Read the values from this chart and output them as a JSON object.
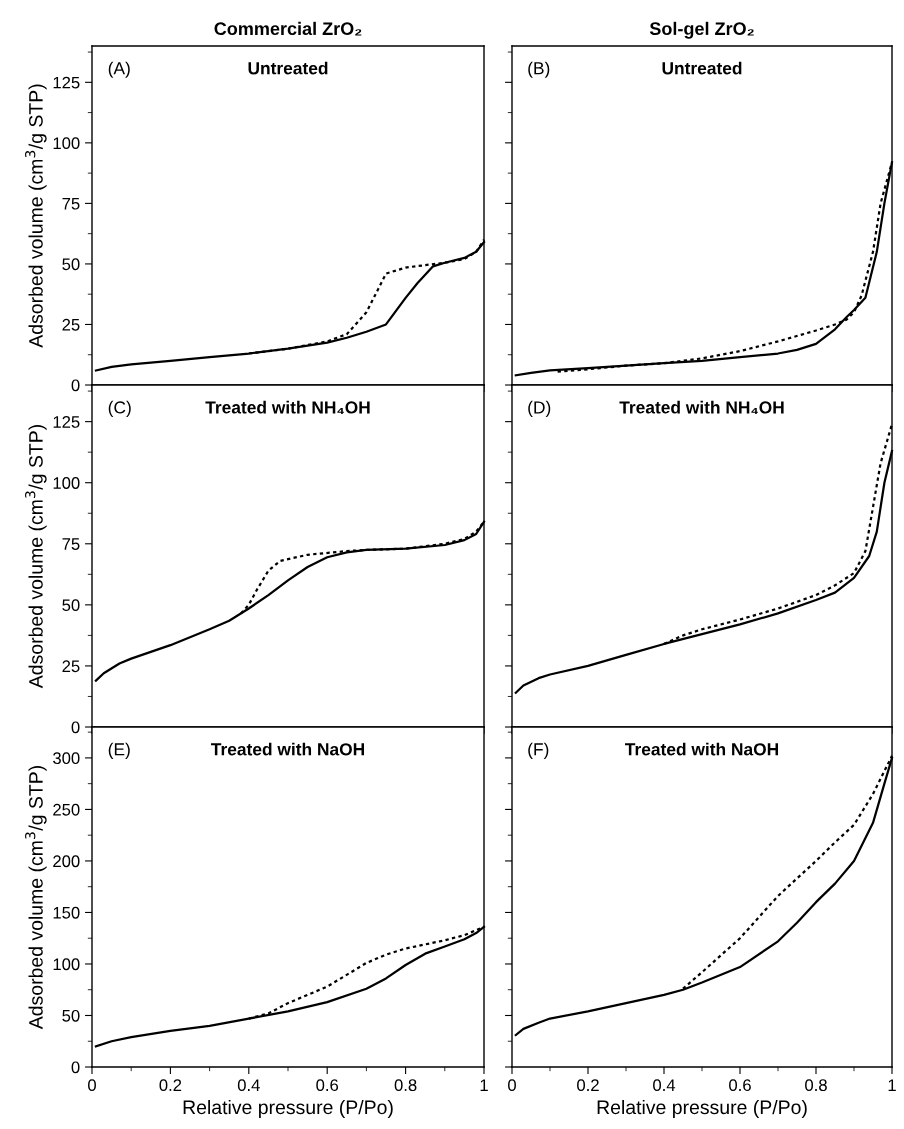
{
  "chart_data": [
    {
      "type": "line",
      "title": "Commercial ZrO₂",
      "subtitle": "Untreated",
      "annotations": [
        "(A)"
      ],
      "ylabel": "Adsorbed volume (cm$^{3}$/g STP)",
      "xlim": [
        0,
        1
      ],
      "ylim": [
        0,
        140
      ],
      "xticks": [
        0,
        {
          "value": 0.1,
          "label": null
        },
        0.2,
        {
          "value": 0.3,
          "label": null
        },
        0.4,
        {
          "value": 0.5,
          "label": null
        },
        0.6,
        {
          "value": 0.7,
          "label": null
        },
        0.8,
        {
          "value": 0.9,
          "label": null
        },
        1
      ],
      "yticks": [
        0,
        {
          "value": 12.5,
          "label": null
        },
        25,
        {
          "value": 37.5,
          "label": null
        },
        50,
        {
          "value": 62.5,
          "label": null
        },
        75,
        {
          "value": 87.5,
          "label": null
        },
        100,
        {
          "value": 112.5,
          "label": null
        },
        125,
        {
          "value": 137.5,
          "label": null
        }
      ],
      "tick_labels": "y",
      "grid": false,
      "legend": false,
      "series": [
        {
          "color": "#000000",
          "line_style": "solid",
          "x": [
            0.01,
            0.05,
            0.1,
            0.2,
            0.3,
            0.4,
            0.5,
            0.6,
            0.65,
            0.7,
            0.75,
            0.8,
            0.83,
            0.87,
            0.9,
            0.95,
            0.98,
            1.0
          ],
          "values": [
            6,
            7.5,
            8.5,
            10,
            11.5,
            13,
            15,
            17.5,
            19.5,
            22,
            25,
            36,
            42,
            49,
            50.5,
            52.5,
            55,
            59
          ]
        },
        {
          "color": "#000000",
          "line_style": "dotted",
          "x": [
            0.4,
            0.45,
            0.5,
            0.55,
            0.6,
            0.65,
            0.7,
            0.75,
            0.8,
            0.85,
            0.9,
            0.95,
            0.98,
            1.0
          ],
          "values": [
            13,
            14,
            15,
            16.5,
            18,
            21,
            30,
            46,
            48.5,
            49.5,
            50.5,
            52,
            55,
            60
          ]
        }
      ]
    },
    {
      "type": "line",
      "title": "Sol-gel ZrO₂",
      "subtitle": "Untreated",
      "annotations": [
        "(B)"
      ],
      "xlim": [
        0,
        1
      ],
      "ylim": [
        0,
        140
      ],
      "xticks": [
        0,
        {
          "value": 0.1,
          "label": null
        },
        0.2,
        {
          "value": 0.3,
          "label": null
        },
        0.4,
        {
          "value": 0.5,
          "label": null
        },
        0.6,
        {
          "value": 0.7,
          "label": null
        },
        0.8,
        {
          "value": 0.9,
          "label": null
        },
        1
      ],
      "yticks": [
        0,
        {
          "value": 12.5,
          "label": null
        },
        25,
        {
          "value": 37.5,
          "label": null
        },
        50,
        {
          "value": 62.5,
          "label": null
        },
        75,
        {
          "value": 87.5,
          "label": null
        },
        100,
        {
          "value": 112.5,
          "label": null
        },
        125,
        {
          "value": 137.5,
          "label": null
        }
      ],
      "tick_labels": false,
      "grid": false,
      "legend": false,
      "series": [
        {
          "color": "#000000",
          "line_style": "solid",
          "x": [
            0.01,
            0.05,
            0.1,
            0.2,
            0.3,
            0.4,
            0.5,
            0.6,
            0.7,
            0.75,
            0.8,
            0.85,
            0.88,
            0.9,
            0.93,
            0.96,
            0.98,
            1.0
          ],
          "values": [
            4,
            5,
            6,
            7,
            8,
            9,
            10,
            11.5,
            13,
            14.5,
            17,
            23,
            28,
            31,
            36,
            55,
            75,
            92
          ]
        },
        {
          "color": "#000000",
          "line_style": "dotted",
          "x": [
            0.12,
            0.2,
            0.3,
            0.4,
            0.45,
            0.5,
            0.6,
            0.7,
            0.8,
            0.85,
            0.88,
            0.9,
            0.92,
            0.95,
            0.97,
            1.0
          ],
          "values": [
            5.5,
            6.5,
            8,
            9,
            10,
            11,
            14,
            18,
            22.5,
            25,
            27,
            30,
            37,
            55,
            75,
            92
          ]
        }
      ]
    },
    {
      "type": "line",
      "subtitle": "Treated with NH₄OH",
      "annotations": [
        "(C)"
      ],
      "ylabel": "Adsorbed volume (cm$^{3}$/g STP)",
      "xlim": [
        0,
        1
      ],
      "ylim": [
        0,
        140
      ],
      "xticks": [
        0,
        {
          "value": 0.1,
          "label": null
        },
        0.2,
        {
          "value": 0.3,
          "label": null
        },
        0.4,
        {
          "value": 0.5,
          "label": null
        },
        0.6,
        {
          "value": 0.7,
          "label": null
        },
        0.8,
        {
          "value": 0.9,
          "label": null
        },
        1
      ],
      "yticks": [
        0,
        {
          "value": 12.5,
          "label": null
        },
        25,
        {
          "value": 37.5,
          "label": null
        },
        50,
        {
          "value": 62.5,
          "label": null
        },
        75,
        {
          "value": 87.5,
          "label": null
        },
        100,
        {
          "value": 112.5,
          "label": null
        },
        125,
        {
          "value": 137.5,
          "label": null
        }
      ],
      "tick_labels": "y",
      "grid": false,
      "legend": false,
      "series": [
        {
          "color": "#000000",
          "line_style": "solid",
          "x": [
            0.01,
            0.03,
            0.07,
            0.1,
            0.2,
            0.3,
            0.35,
            0.4,
            0.45,
            0.5,
            0.55,
            0.6,
            0.65,
            0.7,
            0.8,
            0.9,
            0.95,
            0.98,
            1.0
          ],
          "values": [
            19,
            22,
            26,
            28,
            33.5,
            40,
            43.5,
            48.5,
            54,
            60,
            65.5,
            69.5,
            71.5,
            72.5,
            73,
            74.5,
            76.5,
            79,
            84
          ]
        },
        {
          "color": "#000000",
          "line_style": "dotted",
          "x": [
            0.38,
            0.4,
            0.42,
            0.45,
            0.48,
            0.55,
            0.65,
            0.7,
            0.8,
            0.9,
            0.95,
            0.98,
            1.0
          ],
          "values": [
            46.5,
            50,
            56,
            64,
            68,
            70.5,
            72,
            72.5,
            73,
            75,
            77,
            80,
            84
          ]
        }
      ]
    },
    {
      "type": "line",
      "subtitle": "Treated with NH₄OH",
      "annotations": [
        "(D)"
      ],
      "xlim": [
        0,
        1
      ],
      "ylim": [
        0,
        140
      ],
      "xticks": [
        0,
        {
          "value": 0.1,
          "label": null
        },
        0.2,
        {
          "value": 0.3,
          "label": null
        },
        0.4,
        {
          "value": 0.5,
          "label": null
        },
        0.6,
        {
          "value": 0.7,
          "label": null
        },
        0.8,
        {
          "value": 0.9,
          "label": null
        },
        1
      ],
      "yticks": [
        0,
        {
          "value": 12.5,
          "label": null
        },
        25,
        {
          "value": 37.5,
          "label": null
        },
        50,
        {
          "value": 62.5,
          "label": null
        },
        75,
        {
          "value": 87.5,
          "label": null
        },
        100,
        {
          "value": 112.5,
          "label": null
        },
        125,
        {
          "value": 137.5,
          "label": null
        }
      ],
      "tick_labels": false,
      "grid": false,
      "legend": false,
      "series": [
        {
          "color": "#000000",
          "line_style": "solid",
          "x": [
            0.01,
            0.03,
            0.07,
            0.1,
            0.2,
            0.3,
            0.4,
            0.5,
            0.6,
            0.7,
            0.8,
            0.85,
            0.9,
            0.94,
            0.96,
            0.98,
            1.0
          ],
          "values": [
            14,
            17,
            20,
            21.5,
            25,
            29.5,
            34,
            38,
            42,
            46.5,
            52,
            55,
            61,
            70,
            80,
            100,
            113
          ]
        },
        {
          "color": "#000000",
          "line_style": "dotted",
          "x": [
            0.4,
            0.45,
            0.5,
            0.6,
            0.7,
            0.8,
            0.85,
            0.9,
            0.93,
            0.95,
            0.97,
            1.0
          ],
          "values": [
            34,
            37.5,
            40,
            44,
            48.5,
            54,
            58,
            63,
            72,
            90,
            108,
            124
          ]
        }
      ]
    },
    {
      "type": "line",
      "subtitle": "Treated with NaOH",
      "annotations": [
        "(E)"
      ],
      "ylabel": "Adsorbed volume (cm$^{3}$/g STP)",
      "xlabel": "Relative pressure (P/Po)",
      "xlim": [
        0,
        1
      ],
      "ylim": [
        0,
        330
      ],
      "xticks": [
        0,
        {
          "value": 0.1,
          "label": null
        },
        0.2,
        {
          "value": 0.3,
          "label": null
        },
        0.4,
        {
          "value": 0.5,
          "label": null
        },
        0.6,
        {
          "value": 0.7,
          "label": null
        },
        0.8,
        {
          "value": 0.9,
          "label": null
        },
        1
      ],
      "yticks": [
        0,
        {
          "value": 25,
          "label": null
        },
        50,
        {
          "value": 75,
          "label": null
        },
        100,
        {
          "value": 125,
          "label": null
        },
        150,
        {
          "value": 175,
          "label": null
        },
        200,
        {
          "value": 225,
          "label": null
        },
        250,
        {
          "value": 275,
          "label": null
        },
        300,
        {
          "value": 325,
          "label": null
        }
      ],
      "grid": false,
      "legend": false,
      "series": [
        {
          "color": "#000000",
          "line_style": "solid",
          "x": [
            0.01,
            0.05,
            0.1,
            0.2,
            0.3,
            0.4,
            0.5,
            0.6,
            0.7,
            0.75,
            0.8,
            0.85,
            0.9,
            0.95,
            0.98,
            1.0
          ],
          "values": [
            20,
            25,
            29,
            35,
            40,
            47,
            54,
            63,
            76,
            86,
            99,
            110,
            117,
            124,
            130,
            136
          ]
        },
        {
          "color": "#000000",
          "line_style": "dotted",
          "x": [
            0.4,
            0.45,
            0.5,
            0.6,
            0.7,
            0.75,
            0.8,
            0.85,
            0.9,
            0.95,
            1.0
          ],
          "values": [
            47,
            52,
            62,
            78,
            101,
            109,
            115,
            119,
            123,
            128,
            136
          ]
        }
      ]
    },
    {
      "type": "line",
      "subtitle": "Treated with NaOH",
      "annotations": [
        "(F)"
      ],
      "xlabel": "Relative pressure (P/Po)",
      "xlim": [
        0,
        1
      ],
      "ylim": [
        0,
        330
      ],
      "xticks": [
        0,
        {
          "value": 0.1,
          "label": null
        },
        0.2,
        {
          "value": 0.3,
          "label": null
        },
        0.4,
        {
          "value": 0.5,
          "label": null
        },
        0.6,
        {
          "value": 0.7,
          "label": null
        },
        0.8,
        {
          "value": 0.9,
          "label": null
        },
        1
      ],
      "yticks": [
        0,
        {
          "value": 25,
          "label": null
        },
        50,
        {
          "value": 75,
          "label": null
        },
        100,
        {
          "value": 125,
          "label": null
        },
        150,
        {
          "value": 175,
          "label": null
        },
        200,
        {
          "value": 225,
          "label": null
        },
        250,
        {
          "value": 275,
          "label": null
        },
        300,
        {
          "value": 325,
          "label": null
        }
      ],
      "tick_labels": "x",
      "grid": false,
      "legend": false,
      "series": [
        {
          "color": "#000000",
          "line_style": "solid",
          "x": [
            0.01,
            0.03,
            0.07,
            0.1,
            0.2,
            0.3,
            0.4,
            0.45,
            0.5,
            0.6,
            0.7,
            0.75,
            0.8,
            0.85,
            0.9,
            0.95,
            0.98,
            1.0
          ],
          "values": [
            31,
            37,
            43,
            47,
            54,
            62,
            70,
            75,
            82,
            97,
            122,
            140,
            160,
            178,
            200,
            237,
            275,
            300
          ]
        },
        {
          "color": "#000000",
          "line_style": "dotted",
          "x": [
            0.45,
            0.5,
            0.6,
            0.7,
            0.8,
            0.85,
            0.9,
            0.95,
            1.0
          ],
          "values": [
            76,
            92,
            125,
            166,
            200,
            218,
            235,
            265,
            302
          ]
        }
      ]
    }
  ]
}
